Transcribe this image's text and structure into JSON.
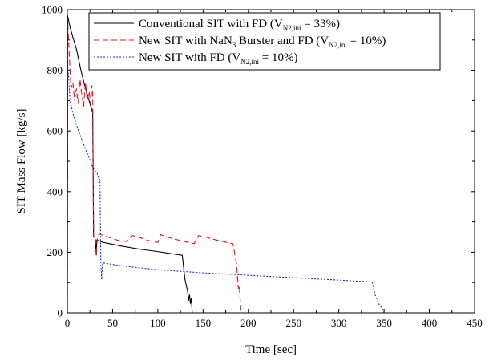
{
  "chart_data": {
    "type": "line",
    "xlabel": "Time [sec]",
    "ylabel": "SIT Mass Flow [kg/s]",
    "xlim": [
      0,
      450
    ],
    "ylim": [
      0,
      1000
    ],
    "x_ticks": [
      0,
      50,
      100,
      150,
      200,
      250,
      300,
      350,
      400,
      450
    ],
    "y_ticks": [
      0,
      200,
      400,
      600,
      800,
      1000
    ],
    "legend_position": "top-right",
    "series": [
      {
        "legend_parts": [
          "Conventional SIT with FD (V",
          "N2,ini",
          " = 33%)"
        ],
        "color": "#000000",
        "style": "solid",
        "points": [
          [
            0,
            0
          ],
          [
            0.3,
            980
          ],
          [
            2,
            955
          ],
          [
            5,
            920
          ],
          [
            10,
            870
          ],
          [
            15,
            800
          ],
          [
            20,
            740
          ],
          [
            25,
            690
          ],
          [
            28,
            660
          ],
          [
            29,
            250
          ],
          [
            30,
            250
          ],
          [
            31,
            240
          ],
          [
            32,
            190
          ],
          [
            32.5,
            240
          ],
          [
            40,
            232
          ],
          [
            60,
            220
          ],
          [
            80,
            210
          ],
          [
            100,
            202
          ],
          [
            120,
            193
          ],
          [
            127,
            190
          ],
          [
            130,
            110
          ],
          [
            133,
            70
          ],
          [
            134,
            40
          ],
          [
            135,
            60
          ],
          [
            136,
            30
          ],
          [
            137,
            50
          ],
          [
            138,
            0
          ],
          [
            140,
            0
          ]
        ]
      },
      {
        "legend_parts": [
          "New SIT with NaN",
          "3",
          " Burster and FD (V",
          "N2,ini",
          " = 10%)"
        ],
        "color": "#e8141b",
        "style": "dashed",
        "points": [
          [
            0,
            0
          ],
          [
            0.3,
            970
          ],
          [
            2,
            860
          ],
          [
            4,
            740
          ],
          [
            6,
            760
          ],
          [
            8,
            700
          ],
          [
            10,
            740
          ],
          [
            12,
            690
          ],
          [
            14,
            770
          ],
          [
            16,
            720
          ],
          [
            18,
            680
          ],
          [
            20,
            760
          ],
          [
            22,
            700
          ],
          [
            24,
            730
          ],
          [
            26,
            690
          ],
          [
            27,
            750
          ],
          [
            28,
            730
          ],
          [
            29,
            250
          ],
          [
            30,
            250
          ],
          [
            32,
            190
          ],
          [
            33,
            240
          ],
          [
            35,
            260
          ],
          [
            45,
            250
          ],
          [
            55,
            240
          ],
          [
            65,
            235
          ],
          [
            72,
            255
          ],
          [
            80,
            248
          ],
          [
            90,
            238
          ],
          [
            100,
            232
          ],
          [
            103,
            258
          ],
          [
            110,
            250
          ],
          [
            120,
            242
          ],
          [
            130,
            235
          ],
          [
            140,
            228
          ],
          [
            145,
            255
          ],
          [
            155,
            248
          ],
          [
            165,
            240
          ],
          [
            175,
            233
          ],
          [
            183,
            228
          ],
          [
            187,
            160
          ],
          [
            189,
            80
          ],
          [
            190,
            90
          ],
          [
            192,
            0
          ],
          [
            195,
            0
          ]
        ]
      },
      {
        "legend_parts": [
          "New SIT with FD (V",
          "N2,ini",
          " = 10%)"
        ],
        "color": "#1e28d2",
        "style": "dotted",
        "points": [
          [
            0,
            0
          ],
          [
            0.3,
            830
          ],
          [
            3,
            700
          ],
          [
            6,
            660
          ],
          [
            10,
            620
          ],
          [
            15,
            580
          ],
          [
            20,
            540
          ],
          [
            25,
            505
          ],
          [
            28,
            480
          ],
          [
            30,
            470
          ],
          [
            33,
            460
          ],
          [
            35,
            440
          ],
          [
            36,
            440
          ],
          [
            37,
            160
          ],
          [
            38,
            110
          ],
          [
            39,
            165
          ],
          [
            60,
            155
          ],
          [
            100,
            142
          ],
          [
            150,
            132
          ],
          [
            200,
            124
          ],
          [
            250,
            116
          ],
          [
            300,
            108
          ],
          [
            335,
            102
          ],
          [
            337,
            100
          ],
          [
            340,
            60
          ],
          [
            345,
            25
          ],
          [
            348,
            15
          ],
          [
            350,
            0
          ],
          [
            352,
            0
          ]
        ]
      }
    ]
  }
}
